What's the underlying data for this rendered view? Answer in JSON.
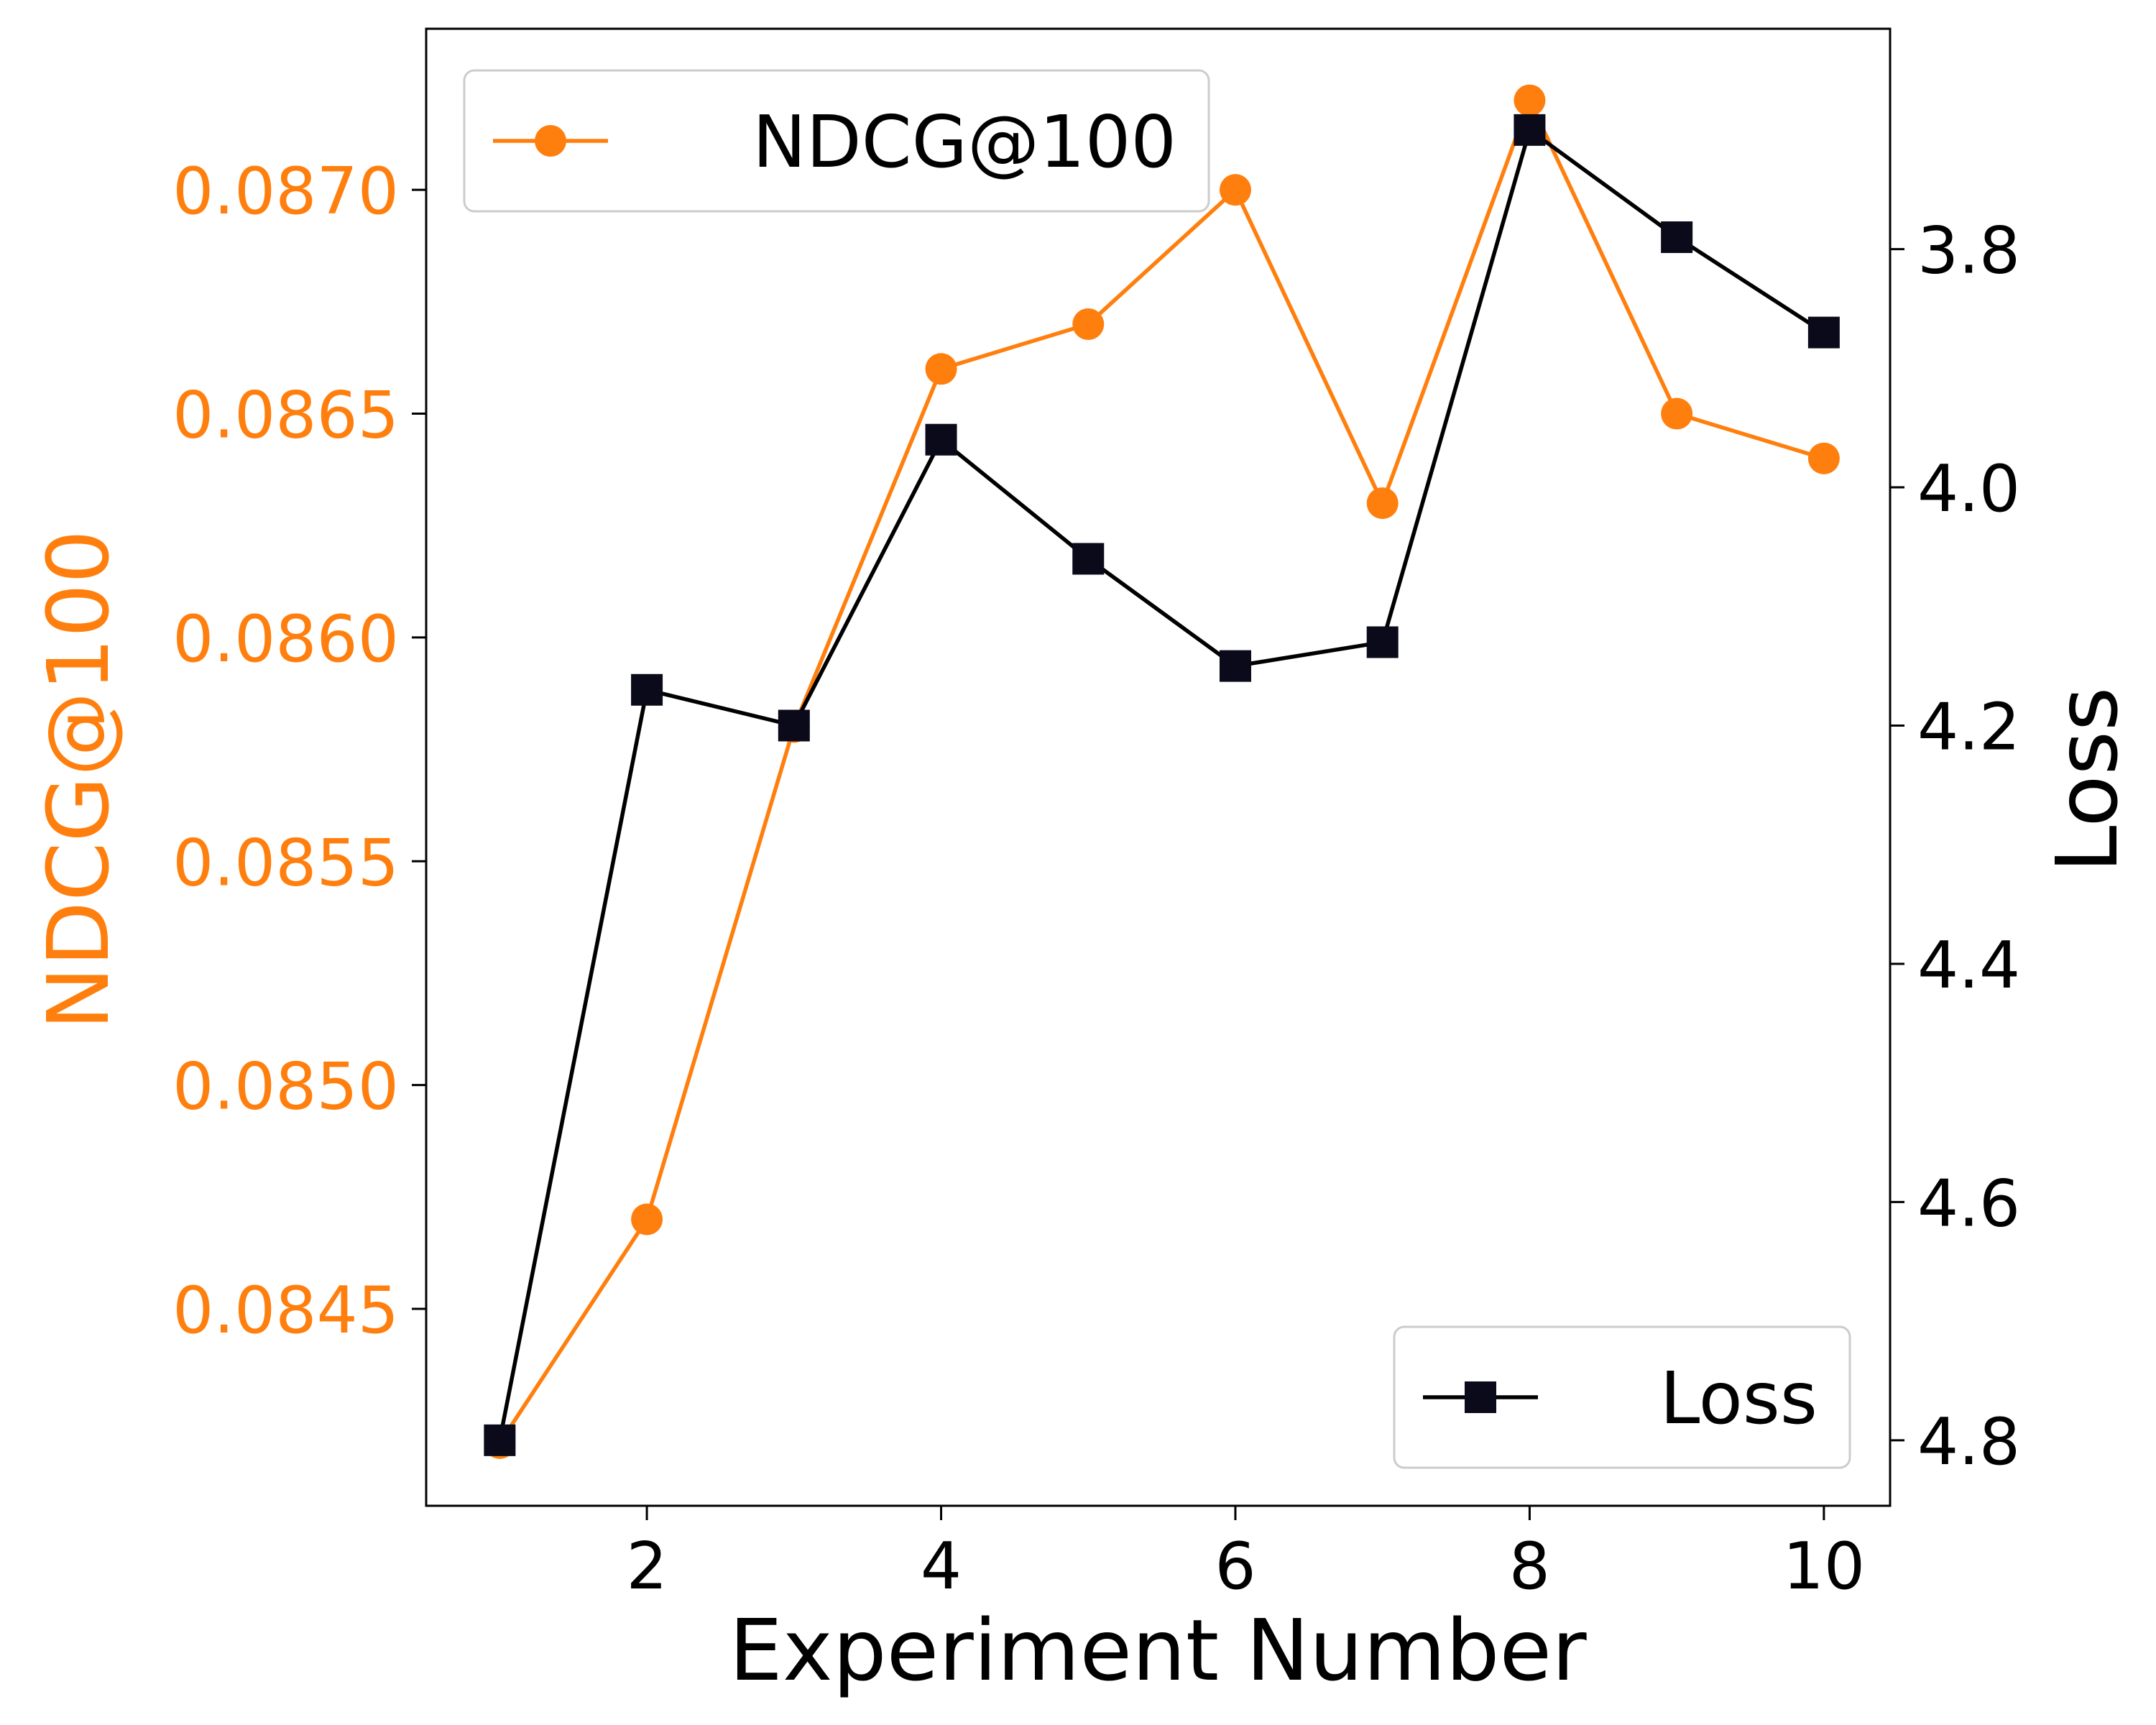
{
  "chart_data": {
    "type": "line",
    "x": [
      1,
      2,
      3,
      4,
      5,
      6,
      7,
      8,
      9,
      10
    ],
    "xlabel": "Experiment Number",
    "xlim": [
      0.5,
      10.45
    ],
    "xticks": [
      2,
      4,
      6,
      8,
      10
    ],
    "xtick_labels": [
      "2",
      "4",
      "6",
      "8",
      "10"
    ],
    "series": [
      {
        "name": "NDCG@100",
        "axis": "left",
        "color": "#ff7f0e",
        "marker": "circle",
        "values": [
          0.0842,
          0.0847,
          0.0858,
          0.0866,
          0.0867,
          0.087,
          0.0863,
          0.0872,
          0.0865,
          0.0864
        ]
      },
      {
        "name": "Loss",
        "axis": "right",
        "color": "#000000",
        "marker": "square",
        "values": [
          4.8,
          4.17,
          4.2,
          3.96,
          4.06,
          4.15,
          4.13,
          3.7,
          3.79,
          3.87
        ]
      }
    ],
    "left_axis": {
      "label": "NDCG@100",
      "color": "#ff7f0e",
      "ylim": [
        0.08406,
        0.08736
      ],
      "ticks": [
        0.0845,
        0.085,
        0.0855,
        0.086,
        0.0865,
        0.087
      ],
      "tick_labels": [
        "0.0845",
        "0.0850",
        "0.0855",
        "0.0860",
        "0.0865",
        "0.0870"
      ]
    },
    "right_axis": {
      "label": "Loss",
      "color": "#000000",
      "ylim": [
        4.855,
        3.615
      ],
      "inverted": true,
      "ticks": [
        3.8,
        4.0,
        4.2,
        4.4,
        4.6,
        4.8
      ],
      "tick_labels": [
        "3.8",
        "4.0",
        "4.2",
        "4.4",
        "4.6",
        "4.8"
      ]
    },
    "legends": [
      {
        "series": "NDCG@100",
        "label": "NDCG@100",
        "placement": "upper-left"
      },
      {
        "series": "Loss",
        "label": "Loss",
        "placement": "lower-right"
      }
    ],
    "grid": false
  }
}
